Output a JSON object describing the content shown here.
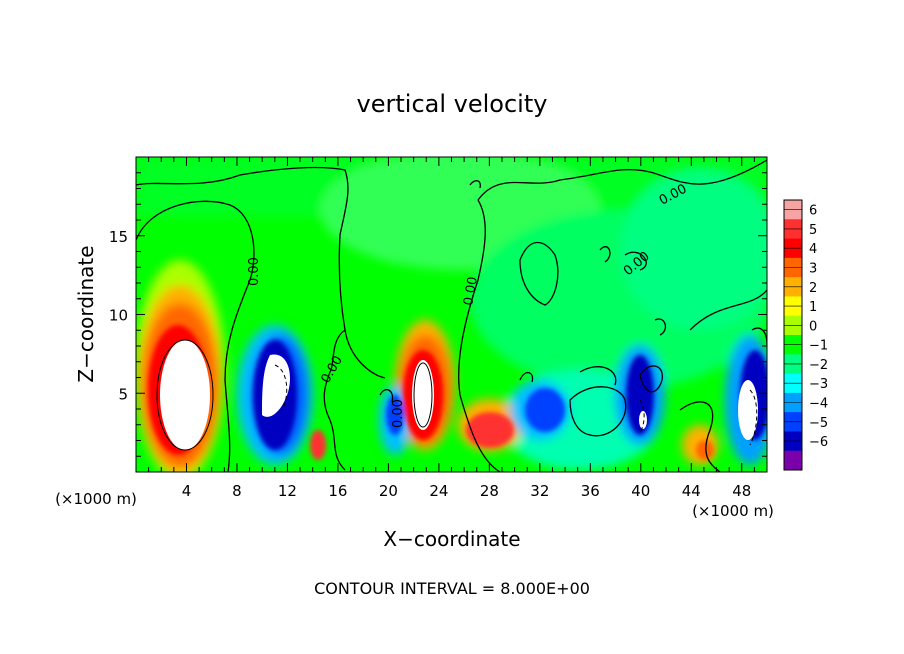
{
  "chart_data": {
    "type": "heatmap",
    "title": "vertical velocity",
    "xlabel": "X−coordinate",
    "ylabel": "Z−coordinate",
    "x_unit_left": "(×1000 m)",
    "x_unit_right": "(×1000 m)",
    "footer": "CONTOUR INTERVAL = 8.000E+00",
    "xlim": [
      0,
      50
    ],
    "ylim": [
      0,
      20
    ],
    "x_ticks": [
      "4",
      "8",
      "12",
      "16",
      "20",
      "24",
      "28",
      "32",
      "36",
      "40",
      "44",
      "48"
    ],
    "y_ticks": [
      "5",
      "10",
      "15"
    ],
    "contour_labels": [
      "0.00",
      "0.00",
      "0.00",
      "0.00",
      "0.00",
      "0.00"
    ],
    "colorbar": {
      "tick_labels": [
        "6",
        "5",
        "4",
        "3",
        "2",
        "1",
        "0",
        "−1",
        "−2",
        "−3",
        "−4",
        "−5",
        "−6"
      ],
      "levels": [
        6,
        5,
        4,
        3,
        2,
        1,
        0,
        -1,
        -2,
        -3,
        -4,
        -5,
        -6
      ],
      "colors": [
        "#f5a3a3",
        "#ff3030",
        "#ff0000",
        "#ff6600",
        "#ffb000",
        "#ffff00",
        "#aaff00",
        "#00ff00",
        "#00ff80",
        "#00ffff",
        "#00a0ff",
        "#0040ff",
        "#0000c0",
        "#7a00aa"
      ]
    }
  }
}
